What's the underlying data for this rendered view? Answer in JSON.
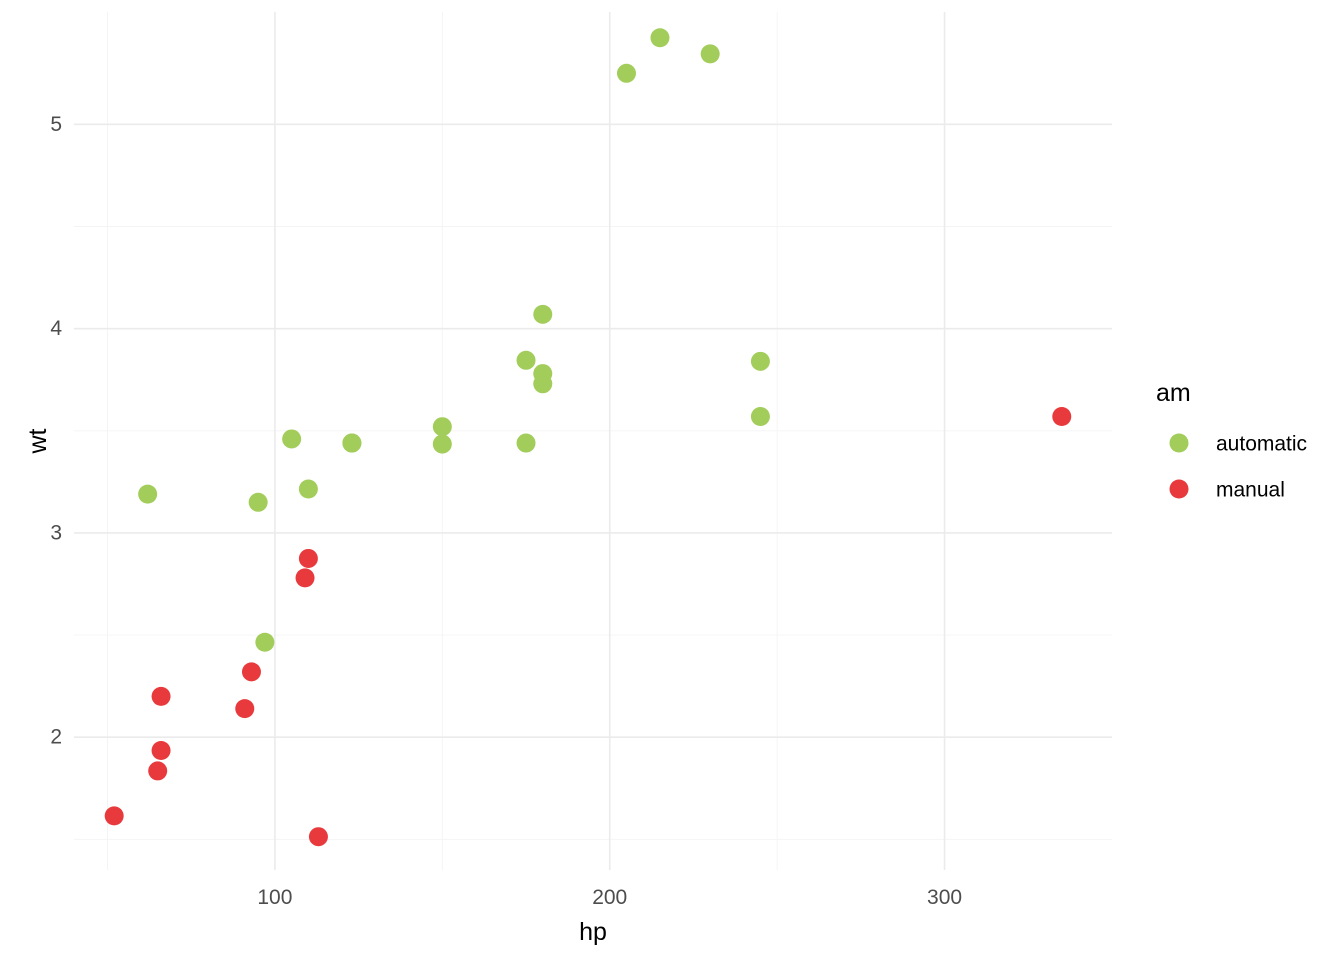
{
  "chart_data": {
    "type": "scatter",
    "xlabel": "hp",
    "ylabel": "wt",
    "xlim": [
      40,
      350
    ],
    "ylim": [
      1.35,
      5.55
    ],
    "x_ticks": [
      100,
      200,
      300
    ],
    "x_minor_ticks": [
      50,
      150,
      250
    ],
    "y_ticks": [
      2,
      3,
      4,
      5
    ],
    "y_minor_ticks": [
      1.5,
      2.5,
      3.5,
      4.5
    ],
    "grid": true,
    "legend": {
      "title": "am",
      "position": "right"
    },
    "series": [
      {
        "name": "automatic",
        "color": "#a2cd5a",
        "points": [
          {
            "x": 110,
            "y": 3.215
          },
          {
            "x": 175,
            "y": 3.44
          },
          {
            "x": 105,
            "y": 3.46
          },
          {
            "x": 245,
            "y": 3.57
          },
          {
            "x": 62,
            "y": 3.19
          },
          {
            "x": 95,
            "y": 3.15
          },
          {
            "x": 123,
            "y": 3.44
          },
          {
            "x": 123,
            "y": 3.44
          },
          {
            "x": 180,
            "y": 4.07
          },
          {
            "x": 180,
            "y": 3.73
          },
          {
            "x": 180,
            "y": 3.78
          },
          {
            "x": 205,
            "y": 5.25
          },
          {
            "x": 215,
            "y": 5.424
          },
          {
            "x": 230,
            "y": 5.345
          },
          {
            "x": 97,
            "y": 2.465
          },
          {
            "x": 150,
            "y": 3.52
          },
          {
            "x": 150,
            "y": 3.435
          },
          {
            "x": 245,
            "y": 3.84
          },
          {
            "x": 175,
            "y": 3.845
          }
        ]
      },
      {
        "name": "manual",
        "color": "#e8393c",
        "points": [
          {
            "x": 110,
            "y": 2.875
          },
          {
            "x": 93,
            "y": 2.32
          },
          {
            "x": 66,
            "y": 2.2
          },
          {
            "x": 52,
            "y": 1.615
          },
          {
            "x": 65,
            "y": 1.835
          },
          {
            "x": 66,
            "y": 1.935
          },
          {
            "x": 91,
            "y": 2.14
          },
          {
            "x": 113,
            "y": 1.513
          },
          {
            "x": 109,
            "y": 2.78
          },
          {
            "x": 335,
            "y": 3.57
          }
        ]
      }
    ]
  }
}
